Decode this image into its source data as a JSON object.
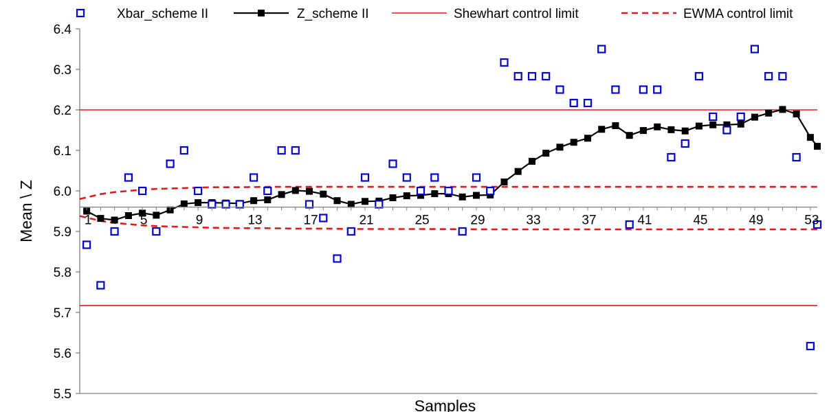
{
  "chart_data": {
    "type": "line",
    "xlabel": "Samples",
    "ylabel": "Mean \\ Z",
    "ylim": [
      5.5,
      6.4
    ],
    "xlim": [
      0.5,
      53.5
    ],
    "yticks": [
      "5.5",
      "5.6",
      "5.7",
      "5.8",
      "5.9",
      "6.0",
      "6.1",
      "6.2",
      "6.3",
      "6.4"
    ],
    "xticks": [
      "1",
      "5",
      "9",
      "13",
      "17",
      "21",
      "25",
      "29",
      "33",
      "37",
      "41",
      "45",
      "49",
      "53"
    ],
    "x_axis_crosses_at": 5.96,
    "legend_position": "top",
    "colors": {
      "xbar": "#0000cc",
      "z": "#000000",
      "shewhart": "#e31a1c",
      "ewma": "#e31a1c"
    },
    "series": [
      {
        "name": "Xbar_scheme II",
        "style": "markers",
        "x": [
          1,
          2,
          3,
          4,
          5,
          6,
          7,
          8,
          9,
          10,
          11,
          12,
          13,
          14,
          15,
          16,
          17,
          18,
          19,
          20,
          21,
          22,
          23,
          24,
          25,
          26,
          27,
          28,
          29,
          30,
          31,
          32,
          33,
          34,
          35,
          36,
          37,
          38,
          39,
          40,
          41,
          42,
          43,
          44,
          45,
          46,
          47,
          48,
          49,
          50,
          51,
          52,
          53,
          54
        ],
        "values": [
          5.867,
          5.767,
          5.9,
          6.033,
          6.0,
          5.9,
          6.067,
          6.1,
          6.0,
          5.967,
          5.967,
          5.967,
          6.033,
          6.0,
          6.1,
          6.1,
          5.967,
          5.933,
          5.833,
          5.9,
          6.033,
          5.967,
          6.067,
          6.033,
          6.0,
          6.033,
          6.0,
          5.9,
          6.033,
          6.0,
          6.317,
          6.283,
          6.283,
          6.283,
          6.25,
          6.217,
          6.217,
          6.35,
          6.25,
          5.917,
          6.25,
          6.25,
          6.083,
          6.117,
          6.283,
          6.183,
          6.15,
          6.183,
          6.35,
          6.283,
          6.283,
          6.083,
          5.617,
          5.917
        ]
      },
      {
        "name": "Z_scheme II",
        "style": "line-markers",
        "x": [
          1,
          2,
          3,
          4,
          5,
          6,
          7,
          8,
          9,
          10,
          11,
          12,
          13,
          14,
          15,
          16,
          17,
          18,
          19,
          20,
          21,
          22,
          23,
          24,
          25,
          26,
          27,
          28,
          29,
          30,
          31,
          32,
          33,
          34,
          35,
          36,
          37,
          38,
          39,
          40,
          41,
          42,
          43,
          44,
          45,
          46,
          47,
          48,
          49,
          50,
          51,
          52,
          53,
          54
        ],
        "values": [
          5.95,
          5.932,
          5.928,
          5.939,
          5.945,
          5.94,
          5.953,
          5.968,
          5.971,
          5.971,
          5.97,
          5.969,
          5.976,
          5.978,
          5.991,
          6.001,
          5.999,
          5.992,
          5.976,
          5.967,
          5.974,
          5.975,
          5.983,
          5.988,
          5.989,
          5.993,
          5.993,
          5.985,
          5.989,
          5.99,
          6.022,
          6.048,
          6.073,
          6.093,
          6.108,
          6.12,
          6.13,
          6.152,
          6.161,
          6.137,
          6.149,
          6.158,
          6.151,
          6.148,
          6.16,
          6.163,
          6.163,
          6.165,
          6.182,
          6.192,
          6.201,
          6.19,
          6.132,
          6.11
        ]
      },
      {
        "name": "Shewhart control limit",
        "style": "line",
        "upper": 6.2,
        "lower": 5.717
      },
      {
        "name": "EWMA control limit",
        "style": "dashed",
        "x": [
          0.5,
          1,
          2,
          3,
          4,
          5,
          6,
          7,
          8,
          9,
          10,
          12,
          14,
          16,
          18,
          20,
          25,
          30,
          40,
          50,
          54
        ],
        "upper": [
          5.98,
          5.984,
          5.992,
          5.997,
          6.0,
          6.003,
          6.005,
          6.006,
          6.007,
          6.008,
          6.009,
          6.009,
          6.01,
          6.01,
          6.01,
          6.01,
          6.01,
          6.01,
          6.01,
          6.01,
          6.01
        ],
        "lower": [
          5.938,
          5.934,
          5.926,
          5.921,
          5.918,
          5.915,
          5.913,
          5.912,
          5.911,
          5.91,
          5.909,
          5.908,
          5.908,
          5.907,
          5.907,
          5.906,
          5.906,
          5.905,
          5.905,
          5.905,
          5.905
        ]
      }
    ]
  }
}
